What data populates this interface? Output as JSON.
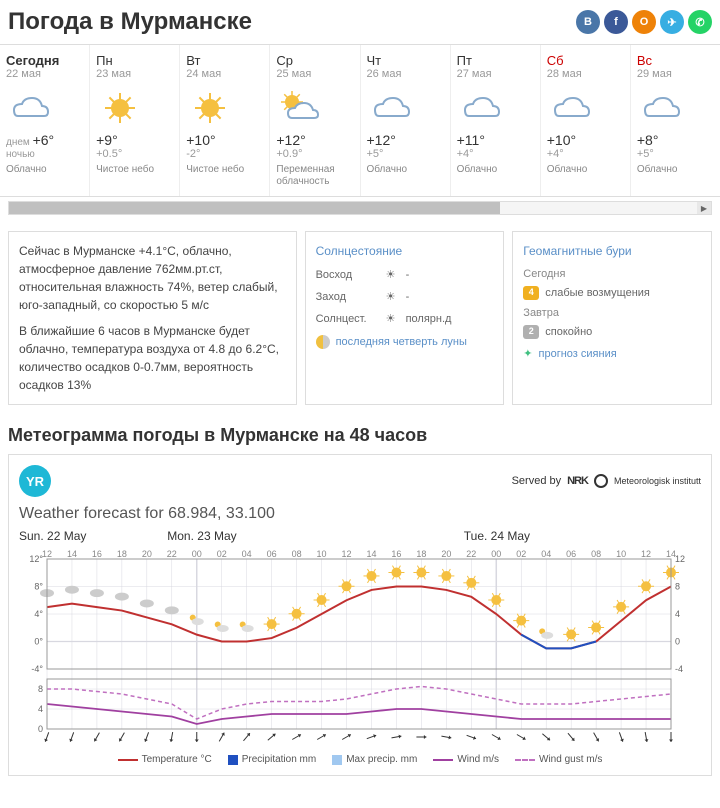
{
  "title": "Погода в Мурманске",
  "social": [
    {
      "name": "vk",
      "color": "#4a76a8",
      "glyph": "B"
    },
    {
      "name": "fb",
      "color": "#3b5998",
      "glyph": "f"
    },
    {
      "name": "ok",
      "color": "#ee8208",
      "glyph": "O"
    },
    {
      "name": "tg",
      "color": "#37aee2",
      "glyph": "✈"
    },
    {
      "name": "wa",
      "color": "#25d366",
      "glyph": "✆"
    }
  ],
  "days": [
    {
      "label": "Сегодня",
      "date": "22 мая",
      "icon": "cloud",
      "hi_label": "днем",
      "hi": "+6°",
      "lo_label": "ночью",
      "lo": "",
      "cond": "Облачно",
      "cls": "today"
    },
    {
      "label": "Пн",
      "date": "23 мая",
      "icon": "sun",
      "hi": "+9°",
      "lo": "+0.5°",
      "cond": "Чистое небо",
      "cls": ""
    },
    {
      "label": "Вт",
      "date": "24 мая",
      "icon": "sun",
      "hi": "+10°",
      "lo": "-2°",
      "cond": "Чистое небо",
      "cls": ""
    },
    {
      "label": "Ср",
      "date": "25 мая",
      "icon": "suncloud",
      "hi": "+12°",
      "lo": "+0.9°",
      "cond": "Переменная облачность",
      "cls": ""
    },
    {
      "label": "Чт",
      "date": "26 мая",
      "icon": "cloud",
      "hi": "+12°",
      "lo": "+5°",
      "cond": "Облачно",
      "cls": ""
    },
    {
      "label": "Пт",
      "date": "27 мая",
      "icon": "cloud",
      "hi": "+11°",
      "lo": "+4°",
      "cond": "Облачно",
      "cls": ""
    },
    {
      "label": "Сб",
      "date": "28 мая",
      "icon": "cloud",
      "hi": "+10°",
      "lo": "+4°",
      "cond": "Облачно",
      "cls": "sat"
    },
    {
      "label": "Вс",
      "date": "29 мая",
      "icon": "cloud",
      "hi": "+8°",
      "lo": "+5°",
      "cond": "Облачно",
      "cls": "sun"
    }
  ],
  "now_text1": "Сейчас в Мурманске +4.1°С, облачно, атмосферное давление 762мм.рт.ст, относительная влажность 74%, ветер слабый, юго-западный, со скоростью 5 м/с",
  "now_text2": "В ближайшие 6 часов в Мурманске будет облачно, температура воздуха от 4.8 до 6.2°С, количество осадков 0-0.7мм, вероятность осадков 13%",
  "sun_panel": {
    "title": "Солнцестояние",
    "rows": [
      {
        "label": "Восход",
        "val": "-"
      },
      {
        "label": "Заход",
        "val": "-"
      },
      {
        "label": "Солнцест.",
        "val": "полярн.д"
      }
    ],
    "moon": "последняя четверть луны"
  },
  "geo_panel": {
    "title": "Геомагнитные бури",
    "rows": [
      {
        "day": "Сегодня",
        "badge": "4",
        "color": "#f0b020",
        "text": "слабые возмущения"
      },
      {
        "day": "Завтра",
        "badge": "2",
        "color": "#b0b0b0",
        "text": "спокойно"
      }
    ],
    "link": "прогноз сияния"
  },
  "meteogram": {
    "section_title": "Метеограмма погоды в Мурманске на 48 часов",
    "yr": "YR",
    "served": "Served by",
    "nrk": "NRK",
    "mi": "Meteorologisk institutt",
    "title": "Weather forecast for 68.984, 33.100",
    "day_labels": [
      "Sun. 22 May",
      "Mon. 23 May",
      "Tue. 24 May"
    ],
    "hours": [
      "12",
      "14",
      "16",
      "18",
      "20",
      "22",
      "00",
      "02",
      "04",
      "06",
      "08",
      "10",
      "12",
      "14",
      "16",
      "18",
      "20",
      "22",
      "00",
      "02",
      "04",
      "06",
      "08",
      "10",
      "12",
      "14"
    ],
    "temp_yticks": [
      -4,
      0,
      4,
      8,
      12
    ],
    "wind_yticks": [
      0,
      4,
      8
    ],
    "temp_color": "#c03030",
    "precip_color": "#2050c0",
    "maxp_color": "#a0c8f0",
    "wind_color": "#a040a0",
    "gust_color": "#c070c0",
    "grid_color": "#d8d8e0",
    "temp_series": [
      5,
      5.5,
      5,
      4.5,
      3.5,
      2.5,
      1,
      0,
      0,
      0.5,
      2,
      4,
      6,
      7.5,
      8,
      8,
      7.5,
      6.5,
      4,
      1,
      -1,
      -1,
      0,
      3,
      6,
      8
    ],
    "precip_series": [
      0,
      0,
      0,
      0,
      0,
      0,
      0,
      0,
      0,
      0,
      0,
      0,
      0,
      0,
      0,
      0,
      0,
      0,
      0,
      0,
      0.5,
      0.5,
      0,
      0,
      0,
      0
    ],
    "wind_series": [
      5,
      4.5,
      4,
      3.5,
      3,
      2.5,
      1,
      2,
      2.5,
      3,
      3,
      3,
      3,
      3.5,
      4,
      4,
      3.5,
      3,
      2.5,
      2,
      2,
      2,
      2,
      2,
      2,
      2
    ],
    "gust_series": [
      8,
      8,
      7.5,
      7,
      6,
      5,
      2,
      4,
      5,
      5.5,
      5.5,
      5.5,
      6,
      7,
      8,
      8.5,
      8,
      7,
      6,
      5,
      5,
      5,
      5.5,
      6,
      6.5,
      7
    ],
    "wind_dir": [
      200,
      200,
      210,
      210,
      200,
      190,
      180,
      30,
      40,
      50,
      60,
      60,
      60,
      70,
      80,
      90,
      100,
      110,
      120,
      120,
      130,
      140,
      150,
      160,
      170,
      180
    ],
    "icons": [
      "cloud",
      "cloud",
      "cloud",
      "cloud",
      "cloud",
      "cloud",
      "scloud",
      "scloud",
      "scloud",
      "sun",
      "sun",
      "sun",
      "sun",
      "sun",
      "sun",
      "sun",
      "sun",
      "sun",
      "sun",
      "sun",
      "scloud",
      "sun",
      "sun",
      "sun",
      "sun",
      "sun"
    ],
    "legend": [
      {
        "label": "Temperature °C",
        "color": "#c03030",
        "type": "line"
      },
      {
        "label": "Precipitation mm",
        "color": "#2050c0",
        "type": "bar"
      },
      {
        "label": "Max precip. mm",
        "color": "#a0c8f0",
        "type": "bar"
      },
      {
        "label": "Wind m/s",
        "color": "#a040a0",
        "type": "line"
      },
      {
        "label": "Wind gust m/s",
        "color": "#c070c0",
        "type": "dash"
      }
    ]
  }
}
